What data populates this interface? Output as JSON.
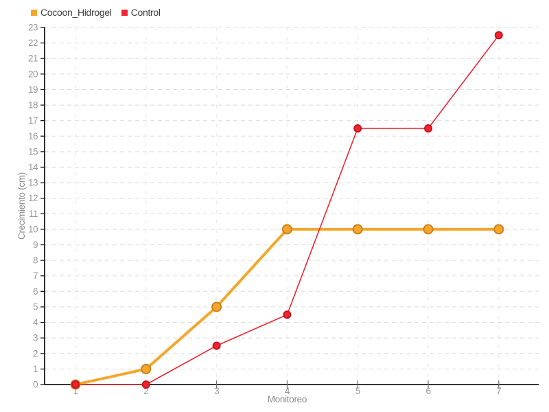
{
  "chart_data": {
    "type": "line",
    "title": "",
    "xlabel": "Monitoreo",
    "ylabel": "Crecimiento (cm)",
    "x": [
      1,
      2,
      3,
      4,
      5,
      6,
      7
    ],
    "x_ticks": [
      "1",
      "2",
      "3",
      "4",
      "5",
      "6",
      "7"
    ],
    "y_ticks": [
      "0",
      "1",
      "2",
      "3",
      "4",
      "5",
      "6",
      "7",
      "8",
      "9",
      "10",
      "11",
      "12",
      "13",
      "14",
      "15",
      "16",
      "17",
      "18",
      "19",
      "20",
      "21",
      "22",
      "23"
    ],
    "xlim": [
      0.56,
      7.56
    ],
    "ylim": [
      0,
      23
    ],
    "y_tick_step": 1,
    "grid": true,
    "grid_style": "dashed",
    "legend_position": "top-left",
    "background_color": "#ffffff",
    "axis_color": "#1a1a1a",
    "tick_label_color": "#979797",
    "axis_title_color": "#8c8c8c",
    "hgrid_color": "#dedede",
    "vgrid_color": "#ececec",
    "series": [
      {
        "name": "Cocoon_Hidrogel",
        "values": [
          0,
          1,
          5,
          10,
          10,
          10,
          10
        ],
        "color": "#f5a62a",
        "marker_ring": "#c9821e",
        "line_width": 4,
        "marker_radius": 6.5
      },
      {
        "name": "Control",
        "values": [
          0,
          0,
          2.5,
          4.5,
          16.5,
          16.5,
          22.5
        ],
        "color": "#f0252f",
        "marker_ring": "#c8131f",
        "line_width": 1.6,
        "marker_radius": 5
      }
    ]
  }
}
